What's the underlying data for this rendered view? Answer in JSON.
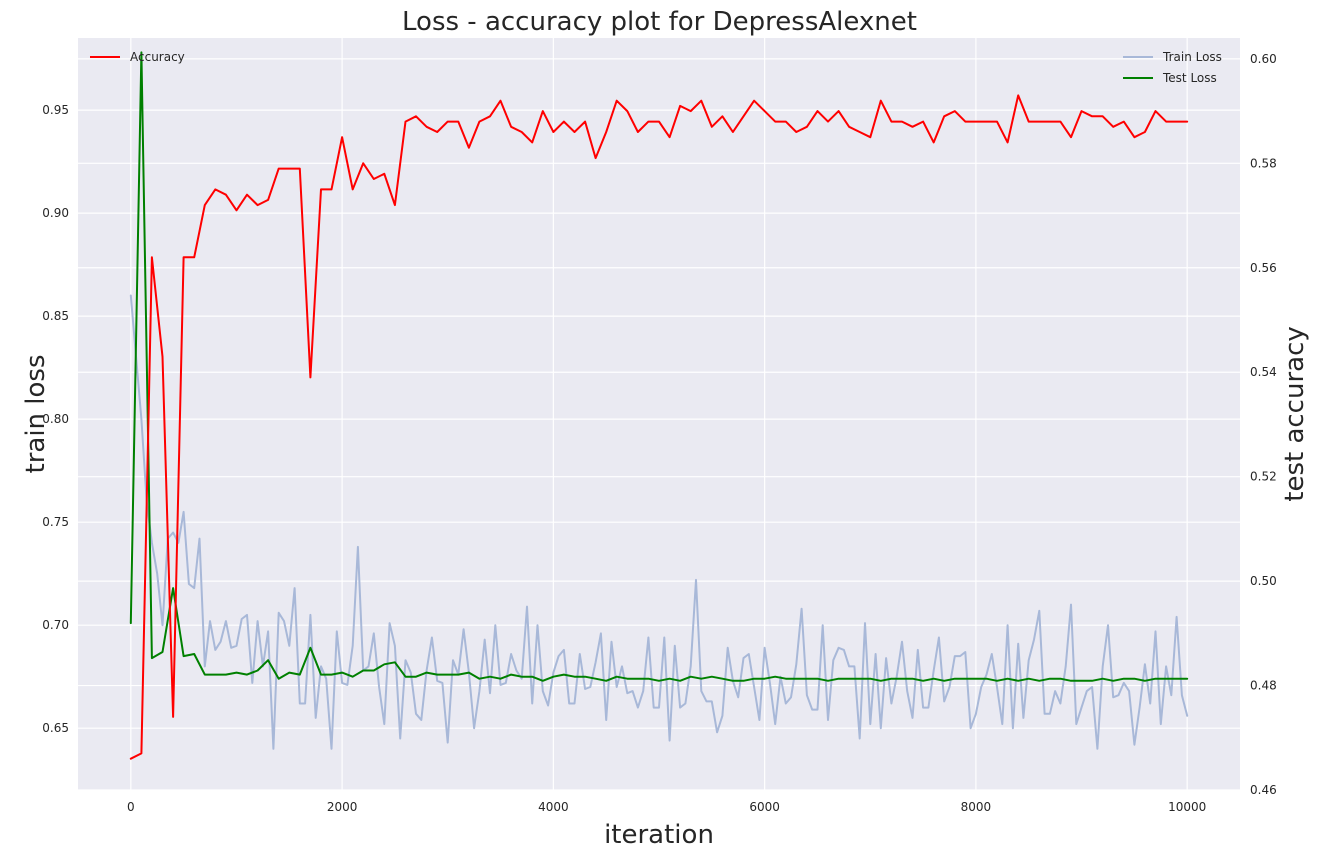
{
  "chart_data": {
    "type": "line",
    "title": "Loss - accuracy plot for DepressAlexnet",
    "xlabel": "iteration",
    "ylabel_left": "train loss",
    "ylabel_right": "test accuracy",
    "xlim": [
      -500,
      10500
    ],
    "ylim_left": [
      0.62,
      0.985
    ],
    "ylim_right": [
      0.46,
      0.604
    ],
    "xticks": [
      0,
      2000,
      4000,
      6000,
      8000,
      10000
    ],
    "xtick_labels": [
      "0",
      "2000",
      "4000",
      "6000",
      "8000",
      "10000"
    ],
    "yticks_left": [
      0.65,
      0.7,
      0.75,
      0.8,
      0.85,
      0.9,
      0.95
    ],
    "ytick_labels_left": [
      "0.65",
      "0.70",
      "0.75",
      "0.80",
      "0.85",
      "0.90",
      "0.95"
    ],
    "yticks_right": [
      0.46,
      0.48,
      0.5,
      0.52,
      0.54,
      0.56,
      0.58,
      0.6
    ],
    "ytick_labels_right": [
      "0.46",
      "0.48",
      "0.50",
      "0.52",
      "0.54",
      "0.56",
      "0.58",
      "0.60"
    ],
    "grid": true,
    "colors": {
      "background": "#eaeaf2",
      "grid": "#ffffff",
      "train_loss": "#a8b8d8",
      "test_loss": "#008000",
      "accuracy": "#ff0000"
    },
    "legend_left": {
      "placement": "top-left",
      "entries": [
        "Accuracy"
      ]
    },
    "legend_right": {
      "placement": "top-right",
      "entries": [
        "Train Loss",
        "Test Loss"
      ]
    },
    "series": [
      {
        "name": "Train Loss",
        "axis": "left",
        "x_start": 0,
        "x_step": 50,
        "values": [
          0.86,
          0.83,
          0.8,
          0.76,
          0.74,
          0.725,
          0.7,
          0.742,
          0.745,
          0.74,
          0.755,
          0.72,
          0.718,
          0.742,
          0.68,
          0.702,
          0.688,
          0.692,
          0.702,
          0.689,
          0.69,
          0.703,
          0.705,
          0.672,
          0.702,
          0.68,
          0.697,
          0.64,
          0.706,
          0.702,
          0.69,
          0.718,
          0.662,
          0.662,
          0.705,
          0.655,
          0.68,
          0.674,
          0.64,
          0.697,
          0.672,
          0.671,
          0.69,
          0.738,
          0.678,
          0.68,
          0.696,
          0.67,
          0.652,
          0.701,
          0.69,
          0.645,
          0.683,
          0.677,
          0.657,
          0.654,
          0.678,
          0.694,
          0.673,
          0.672,
          0.643,
          0.683,
          0.676,
          0.698,
          0.677,
          0.65,
          0.668,
          0.693,
          0.667,
          0.7,
          0.671,
          0.672,
          0.686,
          0.678,
          0.674,
          0.709,
          0.662,
          0.7,
          0.668,
          0.661,
          0.677,
          0.685,
          0.688,
          0.662,
          0.662,
          0.686,
          0.669,
          0.67,
          0.682,
          0.696,
          0.654,
          0.692,
          0.67,
          0.68,
          0.667,
          0.668,
          0.66,
          0.668,
          0.694,
          0.66,
          0.66,
          0.694,
          0.644,
          0.69,
          0.66,
          0.662,
          0.68,
          0.722,
          0.668,
          0.663,
          0.663,
          0.648,
          0.656,
          0.689,
          0.673,
          0.665,
          0.684,
          0.686,
          0.67,
          0.654,
          0.689,
          0.672,
          0.652,
          0.675,
          0.662,
          0.665,
          0.681,
          0.708,
          0.666,
          0.659,
          0.659,
          0.7,
          0.654,
          0.683,
          0.689,
          0.688,
          0.68,
          0.68,
          0.645,
          0.701,
          0.652,
          0.686,
          0.65,
          0.684,
          0.662,
          0.675,
          0.692,
          0.668,
          0.655,
          0.688,
          0.66,
          0.66,
          0.678,
          0.694,
          0.663,
          0.67,
          0.685,
          0.685,
          0.687,
          0.65,
          0.657,
          0.67,
          0.676,
          0.686,
          0.67,
          0.652,
          0.7,
          0.65,
          0.691,
          0.655,
          0.683,
          0.693,
          0.707,
          0.657,
          0.657,
          0.668,
          0.662,
          0.68,
          0.71,
          0.652,
          0.66,
          0.668,
          0.67,
          0.64,
          0.68,
          0.7,
          0.665,
          0.666,
          0.672,
          0.668,
          0.642,
          0.66,
          0.681,
          0.662,
          0.697,
          0.652,
          0.68,
          0.666,
          0.704,
          0.666,
          0.656
        ]
      },
      {
        "name": "Test Loss",
        "axis": "left",
        "x_start": 0,
        "x_step": 100,
        "values": [
          0.701,
          0.978,
          0.684,
          0.687,
          0.718,
          0.685,
          0.686,
          0.676,
          0.676,
          0.676,
          0.677,
          0.676,
          0.678,
          0.683,
          0.674,
          0.677,
          0.676,
          0.689,
          0.676,
          0.676,
          0.677,
          0.675,
          0.678,
          0.678,
          0.681,
          0.682,
          0.675,
          0.675,
          0.677,
          0.676,
          0.676,
          0.676,
          0.677,
          0.674,
          0.675,
          0.674,
          0.676,
          0.675,
          0.675,
          0.673,
          0.675,
          0.676,
          0.675,
          0.675,
          0.674,
          0.673,
          0.675,
          0.674,
          0.674,
          0.674,
          0.673,
          0.674,
          0.673,
          0.675,
          0.674,
          0.675,
          0.674,
          0.673,
          0.673,
          0.674,
          0.674,
          0.675,
          0.674,
          0.674,
          0.674,
          0.674,
          0.673,
          0.674,
          0.674,
          0.674,
          0.674,
          0.673,
          0.674,
          0.674,
          0.674,
          0.673,
          0.674,
          0.673,
          0.674,
          0.674,
          0.674,
          0.674,
          0.673,
          0.674,
          0.673,
          0.674,
          0.673,
          0.674,
          0.674,
          0.673,
          0.673,
          0.673,
          0.674,
          0.673,
          0.674,
          0.674,
          0.673,
          0.674,
          0.674,
          0.674,
          0.674
        ]
      },
      {
        "name": "Accuracy",
        "axis": "right",
        "x_start": 0,
        "x_step": 100,
        "values": [
          0.466,
          0.467,
          0.562,
          0.543,
          0.474,
          0.562,
          0.562,
          0.572,
          0.575,
          0.574,
          0.571,
          0.574,
          0.572,
          0.573,
          0.579,
          0.579,
          0.579,
          0.539,
          0.575,
          0.575,
          0.585,
          0.575,
          0.58,
          0.577,
          0.578,
          0.572,
          0.588,
          0.589,
          0.587,
          0.586,
          0.588,
          0.588,
          0.583,
          0.588,
          0.589,
          0.592,
          0.587,
          0.586,
          0.584,
          0.59,
          0.586,
          0.588,
          0.586,
          0.588,
          0.581,
          0.586,
          0.592,
          0.59,
          0.586,
          0.588,
          0.588,
          0.585,
          0.591,
          0.59,
          0.592,
          0.587,
          0.589,
          0.586,
          0.589,
          0.592,
          0.59,
          0.588,
          0.588,
          0.586,
          0.587,
          0.59,
          0.588,
          0.59,
          0.587,
          0.586,
          0.585,
          0.592,
          0.588,
          0.588,
          0.587,
          0.588,
          0.584,
          0.589,
          0.59,
          0.588,
          0.588,
          0.588,
          0.588,
          0.584,
          0.593,
          0.588,
          0.588,
          0.588,
          0.588,
          0.585,
          0.59,
          0.589,
          0.589,
          0.587,
          0.588,
          0.585,
          0.586,
          0.59,
          0.588,
          0.588,
          0.588
        ]
      }
    ]
  }
}
